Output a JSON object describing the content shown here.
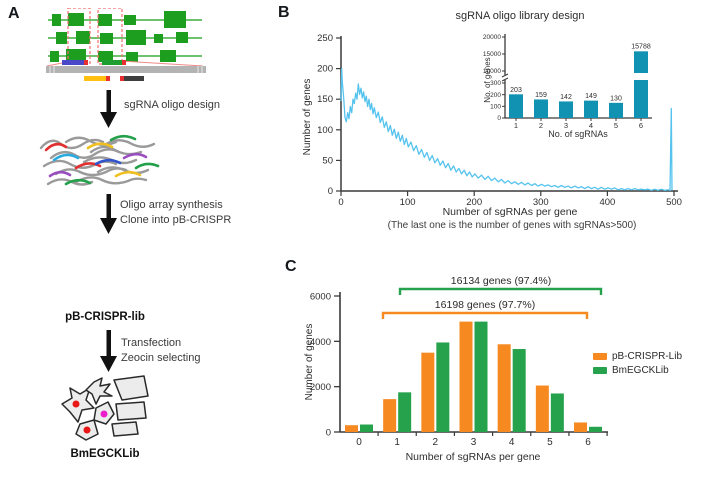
{
  "panels": {
    "a": "A",
    "b": "B",
    "c": "C"
  },
  "panel_a": {
    "step1_label": "sgRNA oligo design",
    "step2_label_line1": "Oligo array synthesis",
    "step2_label_line2": "Clone into pB-CRISPR",
    "step3_label_line1": "Transfection",
    "step3_label_line2": "Zeocin selecting",
    "plasmid_label": "pB-CRISPR-lib",
    "cells_label": "BmEGCKLib"
  },
  "colors": {
    "line_blue": "#56c3ee",
    "inset_teal": "#1292b2",
    "orange": "#f6891f",
    "green": "#25a24b",
    "axis": "#3a3a3a"
  },
  "chart_data": [
    {
      "id": "panel_b_main",
      "type": "line",
      "title": "sgRNA oligo library design",
      "xlabel": "Number of sgRNAs per gene",
      "xlabel_note": "(The last one is the number of genes with sgRNAs>500)",
      "ylabel": "Number of genes",
      "xlim": [
        0,
        500
      ],
      "ylim": [
        0,
        250
      ],
      "xticks": [
        0,
        100,
        200,
        300,
        400,
        500
      ],
      "yticks": [
        0,
        50,
        100,
        150,
        200,
        250
      ],
      "grid": false,
      "line_color": "#56c3ee",
      "points": [
        [
          0,
          147
        ],
        [
          1,
          200
        ],
        [
          2,
          178
        ],
        [
          4,
          152
        ],
        [
          6,
          120
        ],
        [
          8,
          113
        ],
        [
          10,
          128
        ],
        [
          12,
          118
        ],
        [
          14,
          138
        ],
        [
          16,
          128
        ],
        [
          18,
          150
        ],
        [
          20,
          143
        ],
        [
          22,
          160
        ],
        [
          24,
          150
        ],
        [
          26,
          175
        ],
        [
          28,
          158
        ],
        [
          30,
          168
        ],
        [
          32,
          152
        ],
        [
          34,
          162
        ],
        [
          36,
          146
        ],
        [
          38,
          155
        ],
        [
          40,
          138
        ],
        [
          42,
          150
        ],
        [
          44,
          133
        ],
        [
          46,
          143
        ],
        [
          48,
          126
        ],
        [
          50,
          136
        ],
        [
          53,
          120
        ],
        [
          56,
          129
        ],
        [
          59,
          112
        ],
        [
          62,
          121
        ],
        [
          65,
          104
        ],
        [
          68,
          113
        ],
        [
          71,
          97
        ],
        [
          74,
          107
        ],
        [
          77,
          91
        ],
        [
          80,
          101
        ],
        [
          83,
          86
        ],
        [
          86,
          96
        ],
        [
          89,
          81
        ],
        [
          92,
          91
        ],
        [
          95,
          76
        ],
        [
          98,
          86
        ],
        [
          101,
          72
        ],
        [
          105,
          80
        ],
        [
          109,
          66
        ],
        [
          113,
          74
        ],
        [
          117,
          60
        ],
        [
          121,
          68
        ],
        [
          125,
          55
        ],
        [
          129,
          63
        ],
        [
          133,
          50
        ],
        [
          137,
          58
        ],
        [
          141,
          46
        ],
        [
          145,
          53
        ],
        [
          149,
          42
        ],
        [
          153,
          49
        ],
        [
          157,
          38
        ],
        [
          161,
          45
        ],
        [
          165,
          34
        ],
        [
          169,
          41
        ],
        [
          173,
          31
        ],
        [
          177,
          37
        ],
        [
          181,
          28
        ],
        [
          185,
          34
        ],
        [
          189,
          25
        ],
        [
          193,
          31
        ],
        [
          197,
          23
        ],
        [
          201,
          28
        ],
        [
          206,
          21
        ],
        [
          211,
          26
        ],
        [
          216,
          19
        ],
        [
          221,
          24
        ],
        [
          226,
          17
        ],
        [
          231,
          21
        ],
        [
          236,
          15
        ],
        [
          241,
          19
        ],
        [
          246,
          13
        ],
        [
          251,
          17
        ],
        [
          256,
          12
        ],
        [
          261,
          15
        ],
        [
          266,
          11
        ],
        [
          271,
          14
        ],
        [
          276,
          10
        ],
        [
          281,
          13
        ],
        [
          286,
          9
        ],
        [
          291,
          12
        ],
        [
          296,
          8
        ],
        [
          301,
          11
        ],
        [
          306,
          8
        ],
        [
          311,
          10
        ],
        [
          316,
          7
        ],
        [
          321,
          9
        ],
        [
          326,
          6
        ],
        [
          331,
          9
        ],
        [
          336,
          6
        ],
        [
          341,
          8
        ],
        [
          346,
          5
        ],
        [
          351,
          8
        ],
        [
          356,
          5
        ],
        [
          361,
          7
        ],
        [
          366,
          4
        ],
        [
          371,
          7
        ],
        [
          376,
          4
        ],
        [
          381,
          6
        ],
        [
          386,
          3
        ],
        [
          391,
          6
        ],
        [
          396,
          3
        ],
        [
          401,
          5
        ],
        [
          406,
          3
        ],
        [
          411,
          5
        ],
        [
          416,
          2
        ],
        [
          421,
          4
        ],
        [
          426,
          2
        ],
        [
          431,
          4
        ],
        [
          436,
          2
        ],
        [
          441,
          4
        ],
        [
          446,
          2
        ],
        [
          451,
          3
        ],
        [
          456,
          2
        ],
        [
          461,
          3
        ],
        [
          466,
          1
        ],
        [
          471,
          3
        ],
        [
          476,
          1
        ],
        [
          481,
          3
        ],
        [
          486,
          1
        ],
        [
          491,
          2
        ],
        [
          494,
          1
        ],
        [
          496,
          135
        ],
        [
          497,
          1
        ]
      ]
    },
    {
      "id": "panel_b_inset",
      "type": "bar",
      "xlabel": "No. of sgRNAs",
      "ylabel": "No. of genes",
      "categories": [
        "1",
        "2",
        "3",
        "4",
        "5",
        "6"
      ],
      "values": [
        203,
        159,
        142,
        149,
        130,
        15788
      ],
      "bar_labels": [
        "203",
        "159",
        "142",
        "149",
        "130",
        "15788"
      ],
      "bar_color": "#1292b2",
      "axis_break": {
        "lower_max": 300,
        "upper_min": 10000,
        "upper_max": 20000
      },
      "yticks_lower": [
        0,
        100,
        200,
        300
      ],
      "yticks_upper": [
        10000,
        15000,
        20000
      ]
    },
    {
      "id": "panel_c",
      "type": "bar",
      "xlabel": "Number of sgRNAs per gene",
      "ylabel": "Number of genes",
      "categories": [
        "0",
        "1",
        "2",
        "3",
        "4",
        "5",
        "6"
      ],
      "ylim": [
        0,
        6000
      ],
      "yticks": [
        0,
        2000,
        4000,
        6000
      ],
      "legend_position": "right",
      "series": [
        {
          "name": "pB-CRISPR-Lib",
          "color": "#f6891f",
          "values": [
            300,
            1450,
            3500,
            4870,
            3870,
            2050,
            420
          ]
        },
        {
          "name": "BmEGCKLib",
          "color": "#25a24b",
          "values": [
            330,
            1750,
            3950,
            4870,
            3660,
            1700,
            230
          ]
        }
      ],
      "annotations": [
        {
          "text": "16134 genes (97.4%)",
          "series": "BmEGCKLib",
          "color": "#25a24b",
          "span_categories": [
            "1",
            "6"
          ]
        },
        {
          "text": "16198 genes (97.7%)",
          "series": "pB-CRISPR-Lib",
          "color": "#f6891f",
          "span_categories": [
            "1",
            "6"
          ]
        }
      ]
    }
  ]
}
